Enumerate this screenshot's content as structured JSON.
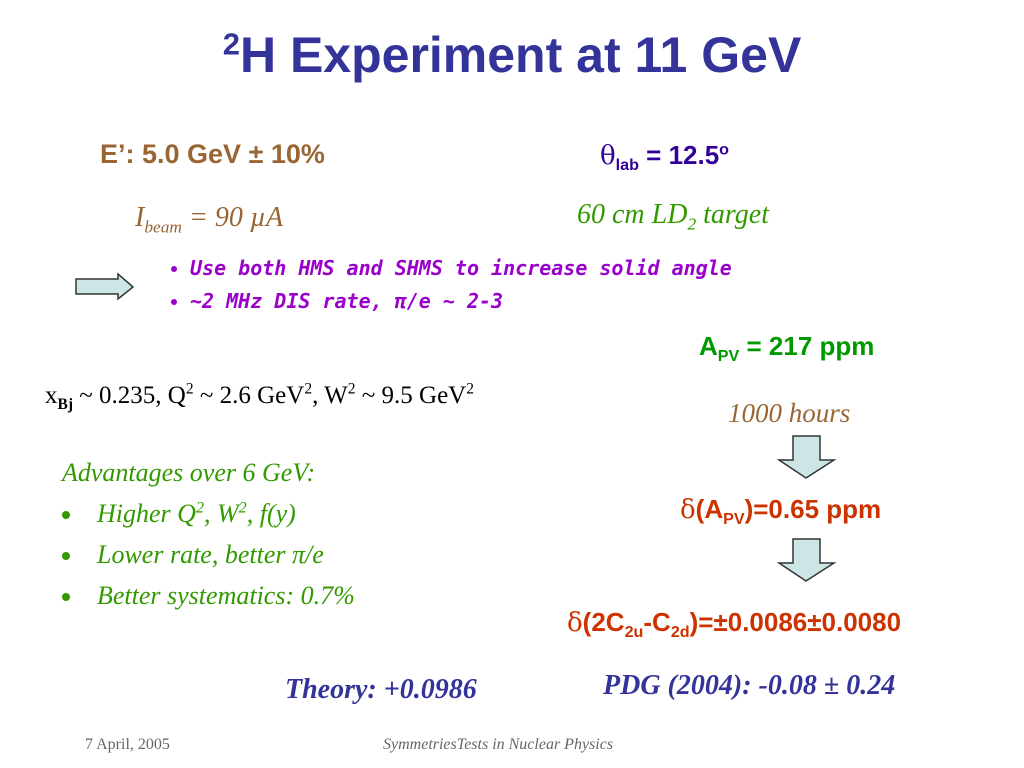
{
  "title": [
    "2",
    "H Experiment at 11 GeV"
  ],
  "energy": "E’: 5.0 GeV ± 10%",
  "angle": [
    "θ",
    "lab",
    " = 12.5",
    "o"
  ],
  "beam": [
    "I",
    "beam",
    " = 90 µA"
  ],
  "target": [
    "60 cm LD",
    "2",
    " target"
  ],
  "bullets": [
    "Use both HMS and SHMS to increase solid angle",
    "~2 MHz DIS rate, π/e ~ 2-3"
  ],
  "asymmetry": [
    "A",
    "PV",
    " = 217 ppm"
  ],
  "kinematics": [
    "x",
    "Bj",
    " ~ 0.235, Q",
    "2",
    " ~ 2.6 GeV",
    "2",
    ", W",
    "2",
    " ~ 9.5 GeV",
    "2"
  ],
  "duration": "1000 hours",
  "asymmetry_error": [
    "δ",
    "(A",
    "PV",
    ")=0.65 ppm"
  ],
  "advantages": {
    "heading": "Advantages over 6 GeV:",
    "items": [
      [
        "Higher Q",
        "2",
        ", W",
        "2",
        ", f(y)"
      ],
      [
        "Lower rate, better π/e"
      ],
      [
        "Better systematics: 0.7%"
      ]
    ]
  },
  "coupling": [
    "δ",
    "(2C",
    "2u",
    "-C",
    "2d",
    ")=±0.0086±0.0080"
  ],
  "theory": "Theory: +0.0986",
  "pdg": "PDG (2004): -0.08 ± 0.24",
  "footer": {
    "date": "7 April, 2005",
    "event": "SymmetriesTests in Nuclear Physics"
  }
}
